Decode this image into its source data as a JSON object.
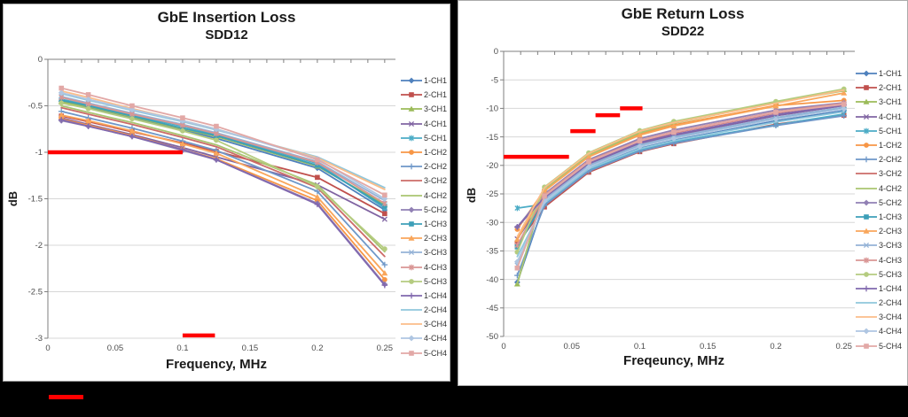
{
  "footer": {
    "limit_swatch_color": "#FF0000"
  },
  "chart_data": [
    {
      "type": "line",
      "title": "GbE Insertion Loss",
      "subtitle": "SDD12",
      "xlabel": "Frequency, MHz",
      "ylabel": "dB",
      "xlim": [
        0,
        0.258
      ],
      "ylim": [
        -3,
        0
      ],
      "x_ticks": [
        0,
        0.05,
        0.1,
        0.15,
        0.2,
        0.25
      ],
      "x_tick_labels": [
        "0",
        "0.05",
        "0.1",
        "0.15",
        "0.2",
        "0.25"
      ],
      "y_ticks": [
        0,
        -0.5,
        -1,
        -1.5,
        -2,
        -2.5,
        -3
      ],
      "y_tick_labels": [
        "0",
        "-0.5",
        "-1",
        "-1.5",
        "-2",
        "-2.5",
        "-3"
      ],
      "grid": "horizontal",
      "legend_position": "right",
      "limit_color": "#FF0000",
      "limits": [
        {
          "x1": 0,
          "x2": 0.1,
          "y": -1
        },
        {
          "x1": 0.1,
          "x2": 0.124,
          "y": -2.97
        }
      ],
      "x": [
        0.01,
        0.03,
        0.0625,
        0.1,
        0.125,
        0.2,
        0.25
      ],
      "series": [
        {
          "name": "1-CH1",
          "color": "#4F81BD",
          "marker": "diamond",
          "values": [
            -0.45,
            -0.52,
            -0.63,
            -0.76,
            -0.85,
            -1.17,
            -1.62
          ]
        },
        {
          "name": "2-CH1",
          "color": "#C0504D",
          "marker": "square",
          "values": [
            -0.61,
            -0.67,
            -0.78,
            -0.9,
            -0.99,
            -1.27,
            -1.66
          ]
        },
        {
          "name": "3-CH1",
          "color": "#9BBB59",
          "marker": "triangle",
          "values": [
            -0.46,
            -0.51,
            -0.62,
            -0.75,
            -0.83,
            -1.15,
            -1.56
          ]
        },
        {
          "name": "4-CH1",
          "color": "#8064A2",
          "marker": "x",
          "values": [
            -0.63,
            -0.7,
            -0.81,
            -0.95,
            -1.05,
            -1.35,
            -1.72
          ]
        },
        {
          "name": "5-CH1",
          "color": "#4BACC6",
          "marker": "asterisk",
          "values": [
            -0.43,
            -0.49,
            -0.6,
            -0.72,
            -0.81,
            -1.12,
            -1.6
          ]
        },
        {
          "name": "1-CH2",
          "color": "#F79646",
          "marker": "circle",
          "values": [
            -0.64,
            -0.71,
            -0.82,
            -0.97,
            -1.07,
            -1.52,
            -2.37
          ]
        },
        {
          "name": "2-CH2",
          "color": "#6E97C8",
          "marker": "plus",
          "values": [
            -0.56,
            -0.63,
            -0.74,
            -0.88,
            -0.98,
            -1.42,
            -2.21
          ]
        },
        {
          "name": "3-CH2",
          "color": "#CC6B68",
          "marker": "none",
          "values": [
            -0.52,
            -0.59,
            -0.7,
            -0.84,
            -0.94,
            -1.38,
            -2.12
          ]
        },
        {
          "name": "4-CH2",
          "color": "#A9C471",
          "marker": "none",
          "values": [
            -0.5,
            -0.57,
            -0.68,
            -0.82,
            -0.92,
            -1.35,
            -2.07
          ]
        },
        {
          "name": "5-CH2",
          "color": "#9180B4",
          "marker": "diamond",
          "values": [
            -0.66,
            -0.72,
            -0.83,
            -0.98,
            -1.08,
            -1.55,
            -2.42
          ]
        },
        {
          "name": "1-CH3",
          "color": "#3D9FB8",
          "marker": "square",
          "values": [
            -0.44,
            -0.5,
            -0.61,
            -0.74,
            -0.82,
            -1.14,
            -1.58
          ]
        },
        {
          "name": "2-CH3",
          "color": "#F9A65B",
          "marker": "triangle",
          "values": [
            -0.6,
            -0.66,
            -0.77,
            -0.91,
            -1.01,
            -1.48,
            -2.3
          ]
        },
        {
          "name": "3-CH3",
          "color": "#95B3D7",
          "marker": "x",
          "values": [
            -0.4,
            -0.47,
            -0.58,
            -0.7,
            -0.79,
            -1.1,
            -1.52
          ]
        },
        {
          "name": "4-CH3",
          "color": "#D99694",
          "marker": "asterisk",
          "values": [
            -0.41,
            -0.48,
            -0.59,
            -0.71,
            -0.8,
            -1.11,
            -1.55
          ]
        },
        {
          "name": "5-CH3",
          "color": "#B5CC80",
          "marker": "circle",
          "values": [
            -0.47,
            -0.53,
            -0.64,
            -0.77,
            -0.87,
            -1.37,
            -2.04
          ]
        },
        {
          "name": "1-CH4",
          "color": "#8168AE",
          "marker": "plus",
          "values": [
            -0.65,
            -0.72,
            -0.83,
            -0.97,
            -1.08,
            -1.56,
            -2.43
          ]
        },
        {
          "name": "2-CH4",
          "color": "#8FC7DC",
          "marker": "none",
          "values": [
            -0.37,
            -0.44,
            -0.55,
            -0.67,
            -0.76,
            -1.05,
            -1.38
          ]
        },
        {
          "name": "3-CH4",
          "color": "#FBBD8A",
          "marker": "none",
          "values": [
            -0.34,
            -0.41,
            -0.53,
            -0.66,
            -0.75,
            -1.06,
            -1.4
          ]
        },
        {
          "name": "4-CH4",
          "color": "#AFC6E2",
          "marker": "diamond",
          "values": [
            -0.36,
            -0.43,
            -0.54,
            -0.66,
            -0.75,
            -1.07,
            -1.5
          ]
        },
        {
          "name": "5-CH4",
          "color": "#E2A8A6",
          "marker": "square",
          "values": [
            -0.31,
            -0.38,
            -0.5,
            -0.63,
            -0.72,
            -1.08,
            -1.46
          ]
        }
      ]
    },
    {
      "type": "line",
      "title": "GbE Return Loss",
      "subtitle": "SDD22",
      "xlabel": "Freqeuncy, MHz",
      "ylabel": "dB",
      "xlim": [
        0,
        0.258
      ],
      "ylim": [
        -50,
        0
      ],
      "x_ticks": [
        0,
        0.05,
        0.1,
        0.15,
        0.2,
        0.25
      ],
      "x_tick_labels": [
        "0",
        "0.05",
        "0.1",
        "0.15",
        "0.2",
        "0.25"
      ],
      "y_ticks": [
        0,
        -5,
        -10,
        -15,
        -20,
        -25,
        -30,
        -35,
        -40,
        -45,
        -50
      ],
      "y_tick_labels": [
        "0",
        "-5",
        "-10",
        "-15",
        "-20",
        "-25",
        "-30",
        "-35",
        "-40",
        "-45",
        "-50"
      ],
      "grid": "horizontal",
      "legend_position": "right",
      "limit_color": "#FF0000",
      "limits": [
        {
          "x1": 0,
          "x2": 0.048,
          "y": -18.5
        },
        {
          "x1": 0.049,
          "x2": 0.0675,
          "y": -14
        },
        {
          "x1": 0.0675,
          "x2": 0.0855,
          "y": -11.2
        },
        {
          "x1": 0.0855,
          "x2": 0.102,
          "y": -10
        }
      ],
      "x": [
        0.01,
        0.03,
        0.0625,
        0.1,
        0.125,
        0.2,
        0.25
      ],
      "series": [
        {
          "name": "1-CH1",
          "color": "#4F81BD",
          "marker": "diamond",
          "values": [
            -40.5,
            -26.5,
            -20.5,
            -17.0,
            -15.6,
            -12.2,
            -10.4
          ]
        },
        {
          "name": "2-CH1",
          "color": "#C0504D",
          "marker": "square",
          "values": [
            -33.8,
            -27.3,
            -21.2,
            -17.6,
            -16.2,
            -12.8,
            -11.2
          ]
        },
        {
          "name": "3-CH1",
          "color": "#9BBB59",
          "marker": "triangle",
          "values": [
            -40.8,
            -24.0,
            -18.0,
            -14.1,
            -12.4,
            -8.9,
            -6.7
          ]
        },
        {
          "name": "4-CH1",
          "color": "#8064A2",
          "marker": "x",
          "values": [
            -32.9,
            -25.8,
            -19.8,
            -16.2,
            -14.8,
            -11.3,
            -9.5
          ]
        },
        {
          "name": "5-CH1",
          "color": "#4BACC6",
          "marker": "asterisk",
          "values": [
            -27.5,
            -26.8,
            -20.8,
            -17.3,
            -15.9,
            -12.9,
            -11.0
          ]
        },
        {
          "name": "1-CH2",
          "color": "#F79646",
          "marker": "circle",
          "values": [
            -31.2,
            -24.3,
            -18.3,
            -14.5,
            -12.9,
            -9.5,
            -8.6
          ]
        },
        {
          "name": "2-CH2",
          "color": "#6E97C8",
          "marker": "plus",
          "values": [
            -39.3,
            -27.0,
            -21.0,
            -17.5,
            -16.1,
            -13.0,
            -11.3
          ]
        },
        {
          "name": "3-CH2",
          "color": "#CC6B68",
          "marker": "none",
          "values": [
            -34.5,
            -25.5,
            -19.5,
            -15.8,
            -14.3,
            -10.8,
            -9.2
          ]
        },
        {
          "name": "4-CH2",
          "color": "#A9C471",
          "marker": "none",
          "values": [
            -40.7,
            -24.2,
            -18.2,
            -14.3,
            -12.6,
            -9.0,
            -6.9
          ]
        },
        {
          "name": "5-CH2",
          "color": "#9180B4",
          "marker": "diamond",
          "values": [
            -30.8,
            -25.0,
            -19.0,
            -15.3,
            -13.8,
            -10.3,
            -9.0
          ]
        },
        {
          "name": "1-CH3",
          "color": "#3D9FB8",
          "marker": "square",
          "values": [
            -34.3,
            -26.2,
            -20.2,
            -16.6,
            -15.2,
            -11.8,
            -10.0
          ]
        },
        {
          "name": "2-CH3",
          "color": "#F9A65B",
          "marker": "triangle",
          "values": [
            -33.0,
            -24.5,
            -18.5,
            -14.7,
            -13.1,
            -9.6,
            -7.3
          ]
        },
        {
          "name": "3-CH3",
          "color": "#95B3D7",
          "marker": "x",
          "values": [
            -37.5,
            -26.0,
            -20.0,
            -16.4,
            -15.0,
            -11.6,
            -9.8
          ]
        },
        {
          "name": "4-CH3",
          "color": "#D99694",
          "marker": "asterisk",
          "values": [
            -34.0,
            -25.2,
            -19.2,
            -15.6,
            -14.1,
            -10.6,
            -9.1
          ]
        },
        {
          "name": "5-CH3",
          "color": "#B5CC80",
          "marker": "circle",
          "values": [
            -35.2,
            -23.8,
            -17.8,
            -13.9,
            -12.3,
            -8.8,
            -6.6
          ]
        },
        {
          "name": "1-CH4",
          "color": "#8168AE",
          "marker": "plus",
          "values": [
            -30.8,
            -25.6,
            -19.6,
            -16.0,
            -14.6,
            -11.1,
            -9.4
          ]
        },
        {
          "name": "2-CH4",
          "color": "#8FC7DC",
          "marker": "none",
          "values": [
            -36.0,
            -26.6,
            -20.6,
            -17.1,
            -15.7,
            -12.4,
            -10.6
          ]
        },
        {
          "name": "3-CH4",
          "color": "#FBBD8A",
          "marker": "none",
          "values": [
            -32.5,
            -23.9,
            -17.9,
            -14.0,
            -12.5,
            -9.1,
            -6.8
          ]
        },
        {
          "name": "4-CH4",
          "color": "#AFC6E2",
          "marker": "diamond",
          "values": [
            -36.9,
            -26.3,
            -20.3,
            -16.7,
            -15.3,
            -11.9,
            -10.1
          ]
        },
        {
          "name": "5-CH4",
          "color": "#E2A8A6",
          "marker": "square",
          "values": [
            -38.0,
            -25.4,
            -19.4,
            -15.7,
            -14.2,
            -10.7,
            -9.3
          ]
        }
      ]
    }
  ]
}
